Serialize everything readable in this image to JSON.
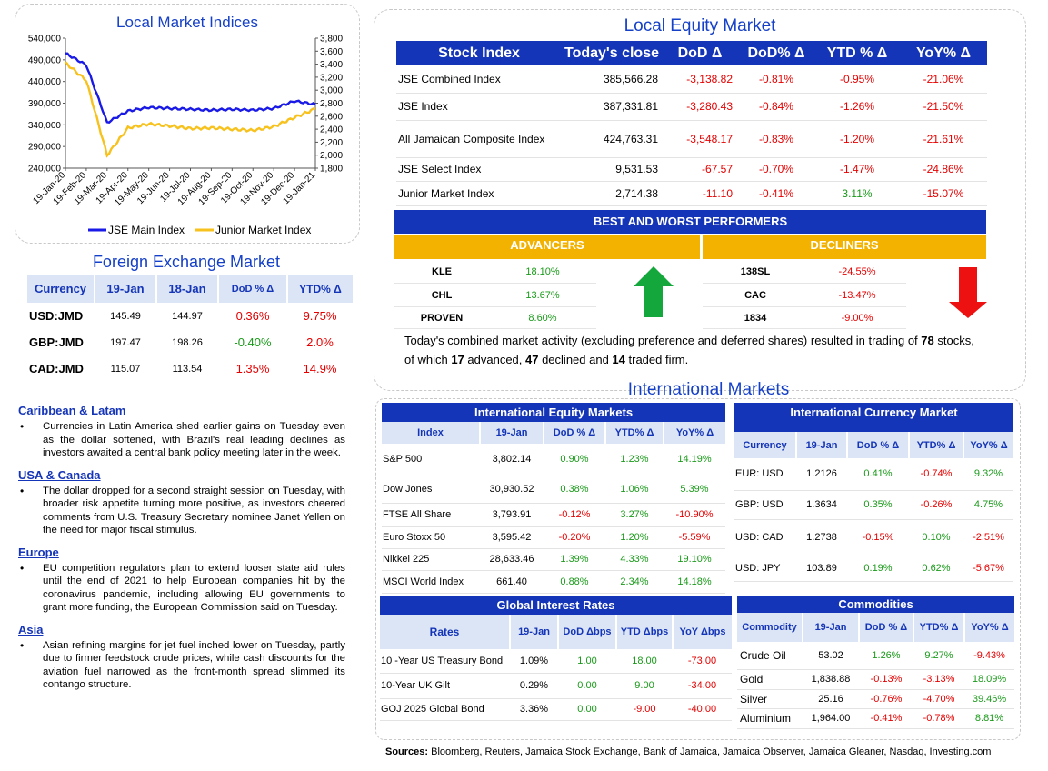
{
  "indices_chart": {
    "title": "Local Market Indices",
    "legend": [
      "JSE Main Index",
      "Junior Market Index"
    ],
    "colors": {
      "main": "#1a1ae6",
      "junior": "#f7c21d"
    }
  },
  "chart_data": {
    "type": "line",
    "title": "Local Market Indices",
    "x": [
      "19-Jan-20",
      "19-Feb-20",
      "19-Mar-20",
      "19-Apr-20",
      "19-May-20",
      "19-Jun-20",
      "19-Jul-20",
      "19-Aug-20",
      "19-Sep-20",
      "19-Oct-20",
      "19-Nov-20",
      "19-Dec-20",
      "19-Jan-21"
    ],
    "y_left_ticks": [
      "540,000",
      "490,000",
      "440,000",
      "390,000",
      "340,000",
      "290,000",
      "240,000"
    ],
    "y_right_ticks": [
      "3,800",
      "3,600",
      "3,400",
      "3,200",
      "3,000",
      "2,800",
      "2,600",
      "2,400",
      "2,200",
      "2,000",
      "1,800"
    ],
    "ylim_left": [
      240000,
      540000
    ],
    "ylim_right": [
      1800,
      3800
    ],
    "series": [
      {
        "name": "JSE Main Index",
        "axis": "left",
        "values": [
          505000,
          478000,
          345000,
          372000,
          380000,
          378000,
          376000,
          374000,
          376000,
          374000,
          378000,
          395000,
          387000
        ]
      },
      {
        "name": "Junior Market Index",
        "axis": "right",
        "values": [
          3420,
          3150,
          2000,
          2420,
          2480,
          2450,
          2410,
          2420,
          2400,
          2380,
          2440,
          2580,
          2714
        ]
      }
    ]
  },
  "fx": {
    "title": "Foreign Exchange Market",
    "headers": [
      "Currency",
      "19-Jan",
      "18-Jan",
      "DoD % Δ",
      "YTD% Δ"
    ],
    "rows": [
      {
        "ccy": "USD:JMD",
        "d1": "145.49",
        "d2": "144.97",
        "dod": "0.36%",
        "dod_s": "neg",
        "ytd": "9.75%",
        "ytd_s": "neg"
      },
      {
        "ccy": "GBP:JMD",
        "d1": "197.47",
        "d2": "198.26",
        "dod": "-0.40%",
        "dod_s": "pos",
        "ytd": "2.0%",
        "ytd_s": "neg"
      },
      {
        "ccy": "CAD:JMD",
        "d1": "115.07",
        "d2": "113.54",
        "dod": "1.35%",
        "dod_s": "neg",
        "ytd": "14.9%",
        "ytd_s": "neg"
      }
    ]
  },
  "news": [
    {
      "heading": "Caribbean & Latam",
      "text": "Currencies in Latin America shed earlier gains on Tuesday even as the dollar softened, with Brazil's real leading declines as investors awaited a central bank policy meeting later in the week."
    },
    {
      "heading": "USA & Canada",
      "text": "The dollar dropped for a second straight session on Tuesday, with broader risk appetite turning more positive, as investors cheered comments from U.S. Treasury Secretary nominee Janet Yellen on the need for major fiscal stimulus."
    },
    {
      "heading": "Europe",
      "text": "EU competition regulators plan to extend looser state aid rules until the end of 2021 to help European companies hit by the coronavirus pandemic, including allowing EU governments to grant more funding, the European Commission said on Tuesday."
    },
    {
      "heading": "Asia",
      "text": "Asian refining margins for jet fuel inched lower on Tuesday, partly due to firmer feedstock crude prices, while cash discounts for the aviation fuel narrowed as the front-month spread slimmed its contango structure."
    }
  ],
  "equity": {
    "title": "Local Equity Market",
    "headers": [
      "Stock Index",
      "Today's close",
      "DoD  Δ",
      "DoD% Δ",
      "YTD % Δ",
      "YoY% Δ"
    ],
    "rows": [
      {
        "name": "JSE Combined Index",
        "close": "385,566.28",
        "dod": "-3,138.82",
        "dodp": "-0.81%",
        "ytd": "-0.95%",
        "ytd_s": "neg",
        "yoy": "-21.06%"
      },
      {
        "name": "JSE Index",
        "close": "387,331.81",
        "dod": "-3,280.43",
        "dodp": "-0.84%",
        "ytd": "-1.26%",
        "ytd_s": "neg",
        "yoy": "-21.50%"
      },
      {
        "name": "All Jamaican Composite Index",
        "close": "424,763.31",
        "dod": "-3,548.17",
        "dodp": "-0.83%",
        "ytd": "-1.20%",
        "ytd_s": "neg",
        "yoy": "-21.61%"
      },
      {
        "name": "JSE Select Index",
        "close": "9,531.53",
        "dod": "-67.57",
        "dodp": "-0.70%",
        "ytd": "-1.47%",
        "ytd_s": "neg",
        "yoy": "-24.86%"
      },
      {
        "name": "Junior Market Index",
        "close": "2,714.38",
        "dod": "-11.10",
        "dodp": "-0.41%",
        "ytd": "3.11%",
        "ytd_s": "pos",
        "yoy": "-15.07%"
      }
    ]
  },
  "performers": {
    "title": "BEST AND WORST PERFORMERS",
    "adv_label": "ADVANCERS",
    "dec_label": "DECLINERS",
    "advancers": [
      {
        "name": "KLE",
        "val": "18.10%"
      },
      {
        "name": "CHL",
        "val": "13.67%"
      },
      {
        "name": "PROVEN",
        "val": "8.60%"
      }
    ],
    "decliners": [
      {
        "name": "138SL",
        "val": "-24.55%"
      },
      {
        "name": "CAC",
        "val": "-13.47%"
      },
      {
        "name": "1834",
        "val": "-9.00%"
      }
    ]
  },
  "summary": {
    "t1": "Today's combined market activity (excluding preference and deferred shares) resulted in trading of ",
    "n1": "78",
    "t2": " stocks, of which ",
    "n2": "17",
    "t3": " advanced, ",
    "n3": "47",
    "t4": " declined and ",
    "n4": "14",
    "t5": " traded firm."
  },
  "intl": {
    "title": "International Markets",
    "equity": {
      "title": "International Equity Markets",
      "headers": [
        "Index",
        "19-Jan",
        "DoD % Δ",
        "YTD% Δ",
        "YoY% Δ"
      ],
      "rows": [
        {
          "name": "S&P 500",
          "v": "3,802.14",
          "dod": "0.90%",
          "dod_s": "pos",
          "ytd": "1.23%",
          "ytd_s": "pos",
          "yoy": "14.19%",
          "yoy_s": "pos"
        },
        {
          "name": "Dow Jones",
          "v": "30,930.52",
          "dod": "0.38%",
          "dod_s": "pos",
          "ytd": "1.06%",
          "ytd_s": "pos",
          "yoy": "5.39%",
          "yoy_s": "pos"
        },
        {
          "name": "FTSE All Share",
          "v": "3,793.91",
          "dod": "-0.12%",
          "dod_s": "neg",
          "ytd": "3.27%",
          "ytd_s": "pos",
          "yoy": "-10.90%",
          "yoy_s": "neg"
        },
        {
          "name": "Euro Stoxx 50",
          "v": "3,595.42",
          "dod": "-0.20%",
          "dod_s": "neg",
          "ytd": "1.20%",
          "ytd_s": "pos",
          "yoy": "-5.59%",
          "yoy_s": "neg"
        },
        {
          "name": "Nikkei 225",
          "v": "28,633.46",
          "dod": "1.39%",
          "dod_s": "pos",
          "ytd": "4.33%",
          "ytd_s": "pos",
          "yoy": "19.10%",
          "yoy_s": "pos"
        },
        {
          "name": "MSCI World Index",
          "v": "661.40",
          "dod": "0.88%",
          "dod_s": "pos",
          "ytd": "2.34%",
          "ytd_s": "pos",
          "yoy": "14.18%",
          "yoy_s": "pos"
        }
      ]
    },
    "currency": {
      "title": "International Currency Market",
      "headers": [
        "Currency",
        "19-Jan",
        "DoD % Δ",
        "YTD% Δ",
        "YoY% Δ"
      ],
      "rows": [
        {
          "name": "EUR: USD",
          "v": "1.2126",
          "dod": "0.41%",
          "dod_s": "pos",
          "ytd": "-0.74%",
          "ytd_s": "neg",
          "yoy": "9.32%",
          "yoy_s": "pos"
        },
        {
          "name": "GBP: USD",
          "v": "1.3634",
          "dod": "0.35%",
          "dod_s": "pos",
          "ytd": "-0.26%",
          "ytd_s": "neg",
          "yoy": "4.75%",
          "yoy_s": "pos"
        },
        {
          "name": "USD: CAD",
          "v": "1.2738",
          "dod": "-0.15%",
          "dod_s": "neg",
          "ytd": "0.10%",
          "ytd_s": "pos",
          "yoy": "-2.51%",
          "yoy_s": "neg"
        },
        {
          "name": "USD: JPY",
          "v": "103.89",
          "dod": "0.19%",
          "dod_s": "pos",
          "ytd": "0.62%",
          "ytd_s": "pos",
          "yoy": "-5.67%",
          "yoy_s": "neg"
        }
      ]
    },
    "rates": {
      "title": "Global Interest Rates",
      "headers": [
        "Rates",
        "19-Jan",
        "DoD Δbps",
        "YTD Δbps",
        "YoY Δbps"
      ],
      "rows": [
        {
          "name": "10 -Year US Treasury Bond",
          "v": "1.09%",
          "dod": "1.00",
          "dod_s": "pos",
          "ytd": "18.00",
          "ytd_s": "pos",
          "yoy": "-73.00",
          "yoy_s": "neg"
        },
        {
          "name": "10-Year UK Gilt",
          "v": "0.29%",
          "dod": "0.00",
          "dod_s": "pos",
          "ytd": "9.00",
          "ytd_s": "pos",
          "yoy": "-34.00",
          "yoy_s": "neg"
        },
        {
          "name": "GOJ 2025 Global Bond",
          "v": "3.36%",
          "dod": "0.00",
          "dod_s": "pos",
          "ytd": "-9.00",
          "ytd_s": "neg",
          "yoy": "-40.00",
          "yoy_s": "neg"
        }
      ]
    },
    "commodities": {
      "title": "Commodities",
      "headers": [
        "Commodity",
        "19-Jan",
        "DoD % Δ",
        "YTD% Δ",
        "YoY% Δ"
      ],
      "rows": [
        {
          "name": "Crude Oil",
          "v": "53.02",
          "dod": "1.26%",
          "dod_s": "pos",
          "ytd": "9.27%",
          "ytd_s": "pos",
          "yoy": "-9.43%",
          "yoy_s": "neg"
        },
        {
          "name": "Gold",
          "v": "1,838.88",
          "dod": "-0.13%",
          "dod_s": "neg",
          "ytd": "-3.13%",
          "ytd_s": "neg",
          "yoy": "18.09%",
          "yoy_s": "pos"
        },
        {
          "name": "Silver",
          "v": "25.16",
          "dod": "-0.76%",
          "dod_s": "neg",
          "ytd": "-4.70%",
          "ytd_s": "neg",
          "yoy": "39.46%",
          "yoy_s": "pos"
        },
        {
          "name": "Aluminium",
          "v": "1,964.00",
          "dod": "-0.41%",
          "dod_s": "neg",
          "ytd": "-0.78%",
          "ytd_s": "neg",
          "yoy": "8.81%",
          "yoy_s": "pos"
        }
      ]
    }
  },
  "sources": {
    "label": "Sources:",
    "text": " Bloomberg, Reuters, Jamaica Stock Exchange, Bank of Jamaica, Jamaica Observer, Jamaica Gleaner, Nasdaq, Investing.com"
  }
}
